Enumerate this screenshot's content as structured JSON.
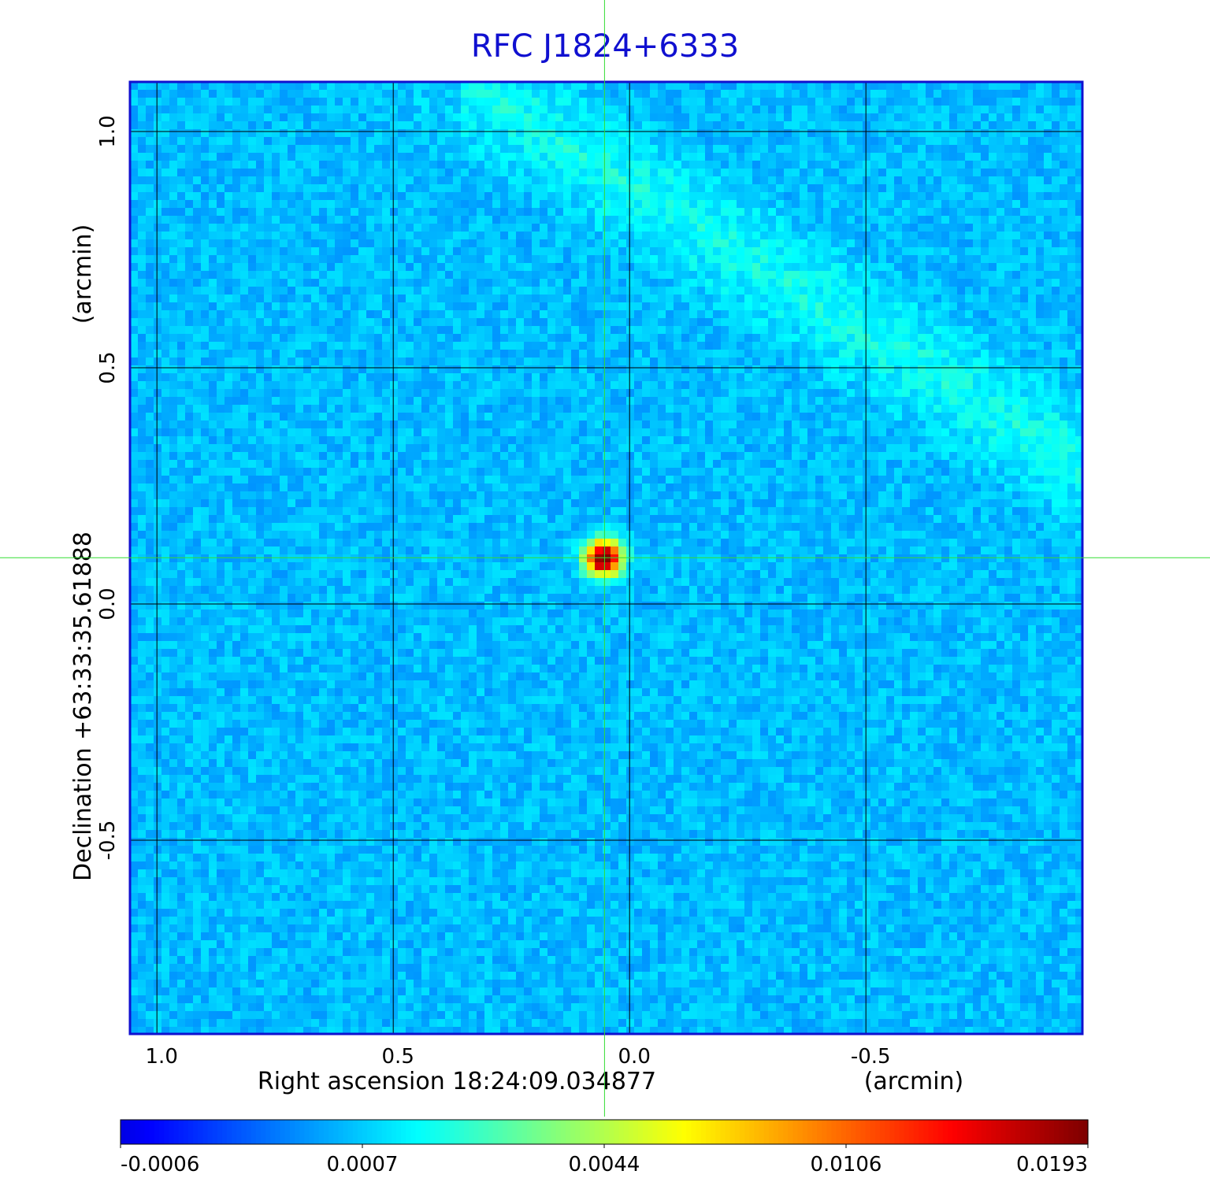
{
  "chart_data": {
    "type": "image",
    "title": "RFC J1824+6333",
    "xlabel": "Right ascension  18:24:09.034877",
    "xunit": "(arcmin)",
    "ylabel": "Declination  +63:33:35.61888",
    "yunit": "(arcmin)",
    "xlim": [
      1.057,
      -0.958
    ],
    "ylim": [
      -0.91,
      1.105
    ],
    "xticks": [
      {
        "value": 1,
        "label": "1.0"
      },
      {
        "value": 0.5,
        "label": "0.5"
      },
      {
        "value": 0,
        "label": "0.0"
      },
      {
        "value": -0.5,
        "label": "-0.5"
      }
    ],
    "yticks": [
      {
        "value": 1,
        "label": "1.0"
      },
      {
        "value": 0.5,
        "label": "0.5"
      },
      {
        "value": 0,
        "label": "0.0"
      },
      {
        "value": -0.5,
        "label": "-0.5"
      }
    ],
    "grid": true,
    "colormap": "jet",
    "crosshair": {
      "x": 0.053,
      "y": 0.098,
      "color": "#33dd33"
    },
    "source": {
      "x": 0.055,
      "y": 0.097
    },
    "colorbar_ticks": [
      -0.0006,
      0.0007,
      0.0044,
      0.0106,
      0.0193
    ]
  }
}
